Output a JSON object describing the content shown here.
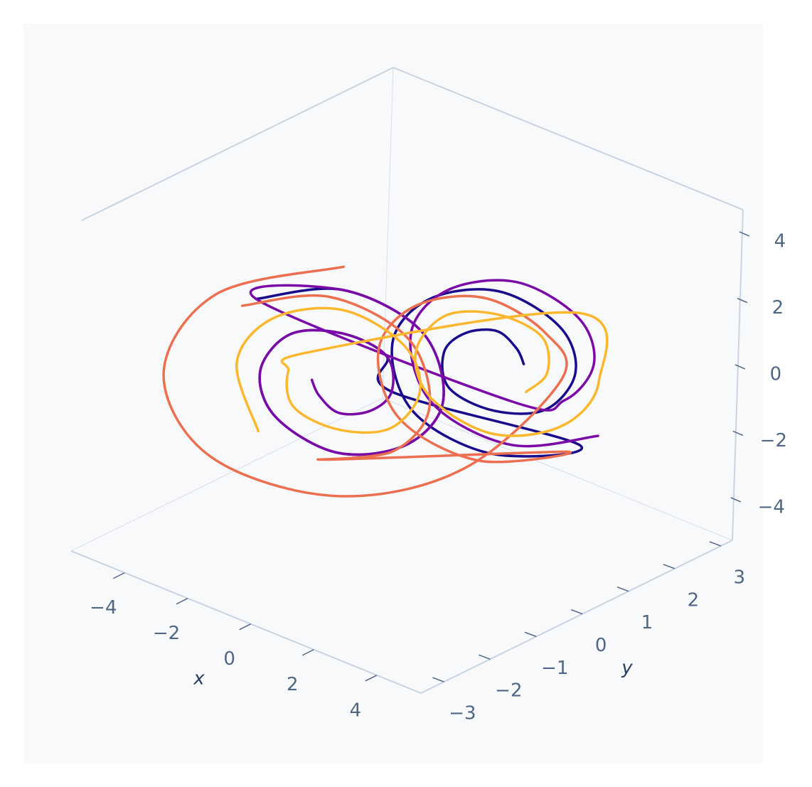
{
  "chart_data": {
    "type": "scatter3d",
    "x_label": "x",
    "y_label": "y",
    "xlim": [
      -5.7,
      5.4
    ],
    "ylim": [
      -3.5,
      3.25
    ],
    "zlim": [
      -5.2,
      4.75
    ],
    "xticks": [
      {
        "value": -4,
        "label": "−4"
      },
      {
        "value": -2,
        "label": "−2"
      },
      0,
      2,
      4
    ],
    "yticks": [
      {
        "value": -3,
        "label": "−3"
      },
      {
        "value": -2,
        "label": "−2"
      },
      {
        "value": -1,
        "label": "−1"
      },
      0,
      1,
      2,
      3
    ],
    "zticks": [
      {
        "value": -4,
        "label": "−4"
      },
      {
        "value": -2,
        "label": "−2"
      },
      0,
      2,
      4
    ],
    "series": [
      {
        "color": "#1a0a8c",
        "x": [
          2.6,
          2.5,
          2.0,
          1.3,
          0.8,
          1.0,
          2.0,
          3.2,
          3.8,
          3.4,
          2.0,
          0.4,
          -0.4,
          0.2,
          2.0,
          4.0,
          -0.8,
          -1.0,
          -2.0,
          -3.2,
          -3.8,
          -3.4,
          -2.0,
          -0.4,
          0.4,
          -0.2,
          -2.0,
          -4.0
        ],
        "y": [
          0.5,
          0.4,
          0.3,
          0.1,
          0.0,
          0.0,
          0.3,
          0.6,
          0.8,
          0.7,
          0.3,
          -0.1,
          -0.3,
          -0.2,
          0.3,
          0.8,
          0.0,
          0.0,
          -0.3,
          -0.6,
          -0.8,
          -0.7,
          -0.3,
          0.1,
          0.3,
          0.2,
          -0.3,
          -0.8
        ],
        "z": [
          0.9,
          1.4,
          1.8,
          1.6,
          0.9,
          -0.1,
          -0.6,
          -0.3,
          0.9,
          2.2,
          3.0,
          2.4,
          0.9,
          -1.0,
          -1.9,
          -1.2,
          -0.9,
          0.1,
          0.6,
          0.3,
          -0.9,
          -2.2,
          -3.0,
          -2.4,
          -0.9,
          1.0,
          1.9,
          1.2
        ]
      },
      {
        "color": "#7a0ba7",
        "x": [
          -2.6,
          -2.5,
          -2.0,
          -1.3,
          -0.8,
          -1.0,
          -2.0,
          -3.2,
          -3.8,
          -3.4,
          -2.0,
          -0.4,
          0.4,
          -0.2,
          -2.0,
          -4.0,
          2.0,
          3.2,
          3.8,
          3.4,
          2.0,
          0.4,
          -0.4,
          0.2,
          2.0,
          4.0
        ],
        "y": [
          -0.5,
          -0.4,
          -0.3,
          -0.1,
          0.0,
          0.0,
          -0.3,
          -0.6,
          -0.8,
          -0.7,
          -0.3,
          0.1,
          0.3,
          0.2,
          -0.3,
          -0.8,
          0.7,
          1.0,
          1.2,
          1.1,
          0.7,
          0.3,
          0.1,
          0.2,
          0.7,
          1.2
        ],
        "z": [
          -0.9,
          -1.4,
          -1.8,
          -1.6,
          -0.9,
          0.1,
          0.6,
          0.3,
          -0.9,
          -2.2,
          -3.0,
          -2.4,
          -0.9,
          1.0,
          1.9,
          1.2,
          -0.6,
          -0.3,
          0.9,
          2.2,
          3.0,
          2.4,
          0.9,
          -1.0,
          -1.9,
          -1.2
        ]
      },
      {
        "color": "#ec7050",
        "x": [
          -2.0,
          -4.4,
          -5.4,
          -4.4,
          -2.0,
          0.4,
          3.8,
          3.4,
          2.0,
          0.4,
          -0.4,
          0.2,
          2.0,
          4.0,
          -2.0,
          -0.4,
          0.4,
          -0.2,
          -2.0,
          -4.0
        ],
        "y": [
          -0.3,
          -1.4,
          -1.8,
          -1.4,
          -0.3,
          0.8,
          0.5,
          0.4,
          0.0,
          -0.4,
          -0.6,
          -0.5,
          0.0,
          0.5,
          -0.6,
          -0.2,
          0.0,
          -0.1,
          -0.6,
          -1.1
        ],
        "z": [
          2.6,
          1.6,
          -0.9,
          -3.3,
          -4.3,
          -3.3,
          0.9,
          2.2,
          3.0,
          2.4,
          0.9,
          -1.0,
          -1.9,
          -1.2,
          -3.0,
          -2.4,
          -0.9,
          1.0,
          1.9,
          1.2
        ]
      },
      {
        "color": "#fbb82e",
        "x": [
          2.7,
          3.2,
          3.0,
          2.0,
          0.8,
          0.2,
          0.6,
          2.0,
          3.6,
          4.4,
          3.8,
          -2.7,
          -3.2,
          -3.0,
          -2.0,
          -0.8,
          -0.2,
          -0.6,
          -2.0,
          -3.6,
          -4.4,
          -3.8
        ],
        "y": [
          0.5,
          0.6,
          0.6,
          0.3,
          0.0,
          -0.2,
          -0.1,
          0.3,
          0.7,
          0.9,
          0.8,
          -0.5,
          -0.6,
          -0.6,
          -0.3,
          0.0,
          0.2,
          0.1,
          -0.3,
          -0.7,
          -0.9,
          -0.8
        ],
        "z": [
          0.1,
          0.8,
          1.8,
          2.3,
          2.0,
          0.8,
          -0.5,
          -1.3,
          -0.7,
          0.8,
          2.7,
          -0.1,
          -0.8,
          -1.8,
          -2.3,
          -2.0,
          -0.8,
          0.5,
          1.3,
          0.7,
          -0.8,
          -2.7
        ]
      }
    ]
  }
}
